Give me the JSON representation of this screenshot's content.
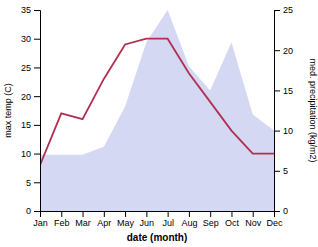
{
  "chart_data": {
    "type": "line",
    "xlabel": "date (month)",
    "ylabel": "max temp (C)",
    "y2label": "med. precipitation (kg/m2)",
    "categories": [
      "Jan",
      "Feb",
      "Mar",
      "Apr",
      "May",
      "Jun",
      "Jul",
      "Aug",
      "Sep",
      "Oct",
      "Nov",
      "Dec"
    ],
    "series": [
      {
        "type": "area",
        "axis": "y2",
        "color": "#b0b8e8",
        "values": [
          7,
          7,
          7,
          8,
          13,
          21,
          25,
          18,
          15,
          21,
          12,
          10
        ]
      },
      {
        "type": "line",
        "color": "#b03050",
        "values": [
          8,
          17,
          16,
          23,
          29,
          30,
          30,
          24,
          19,
          14,
          10,
          10
        ]
      }
    ],
    "ylim": [
      0,
      35
    ],
    "yticks": [
      0,
      5,
      10,
      15,
      20,
      25,
      30,
      35
    ],
    "y2lim": [
      0,
      25
    ],
    "y2ticks": [
      0,
      5,
      10,
      15,
      20,
      25
    ],
    "grid": false
  }
}
